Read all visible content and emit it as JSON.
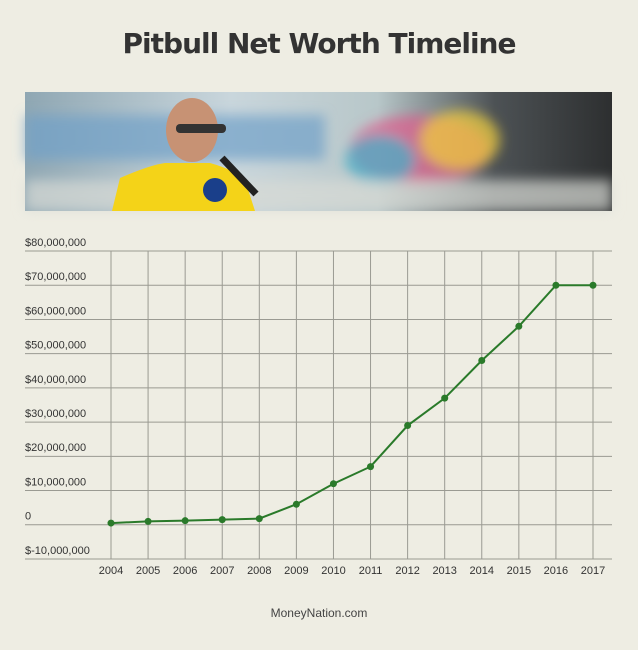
{
  "chart_data": {
    "type": "line",
    "title": "Pitbull Net Worth Timeline",
    "source": "MoneyNation.com",
    "categories": [
      "2004",
      "2005",
      "2006",
      "2007",
      "2008",
      "2009",
      "2010",
      "2011",
      "2012",
      "2013",
      "2014",
      "2015",
      "2016",
      "2017"
    ],
    "series": [
      {
        "name": "Net Worth",
        "color": "#2a7a2a",
        "values": [
          500000,
          1000000,
          1200000,
          1500000,
          1800000,
          6000000,
          12000000,
          17000000,
          29000000,
          37000000,
          48000000,
          58000000,
          70000000,
          70000000
        ]
      }
    ],
    "ylim": [
      -10000000,
      80000000
    ],
    "yticks": [
      {
        "value": -10000000,
        "label": "$-10,000,000"
      },
      0,
      {
        "value": 10000000,
        "label": "$10,000,000"
      },
      {
        "value": 20000000,
        "label": "$20,000,000"
      },
      {
        "value": 30000000,
        "label": "$30,000,000"
      },
      {
        "value": 40000000,
        "label": "$40,000,000"
      },
      {
        "value": 50000000,
        "label": "$50,000,000"
      },
      {
        "value": 60000000,
        "label": "$60,000,000"
      },
      {
        "value": 70000000,
        "label": "$70,000,000"
      },
      {
        "value": 80000000,
        "label": "$80,000,000"
      }
    ],
    "grid": true
  }
}
